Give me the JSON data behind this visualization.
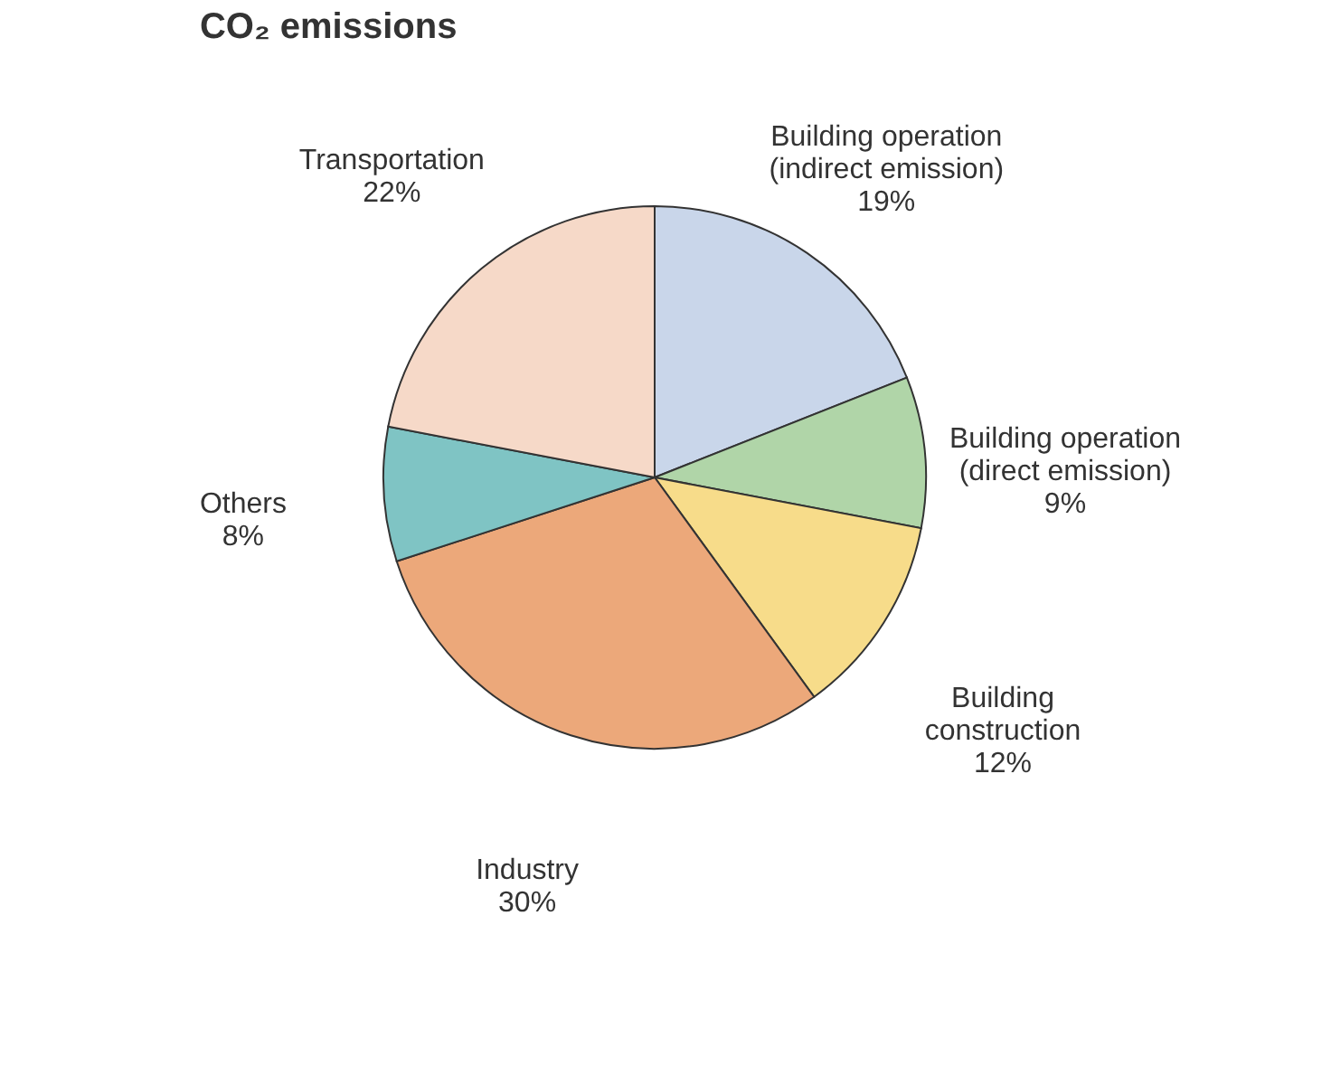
{
  "chart_data": {
    "type": "pie",
    "title": "CO₂ emissions",
    "categories": [
      "Building operation (indirect emission)",
      "Building operation (direct emission)",
      "Building construction",
      "Industry",
      "Others",
      "Transportation"
    ],
    "values": [
      19,
      9,
      12,
      30,
      8,
      22
    ],
    "value_labels": [
      "19%",
      "9%",
      "12%",
      "30%",
      "8%",
      "22%"
    ],
    "colors": [
      "#c9d6ea",
      "#b0d5a8",
      "#f7dc8a",
      "#eca87a",
      "#7fc4c4",
      "#f6d9c8"
    ]
  }
}
